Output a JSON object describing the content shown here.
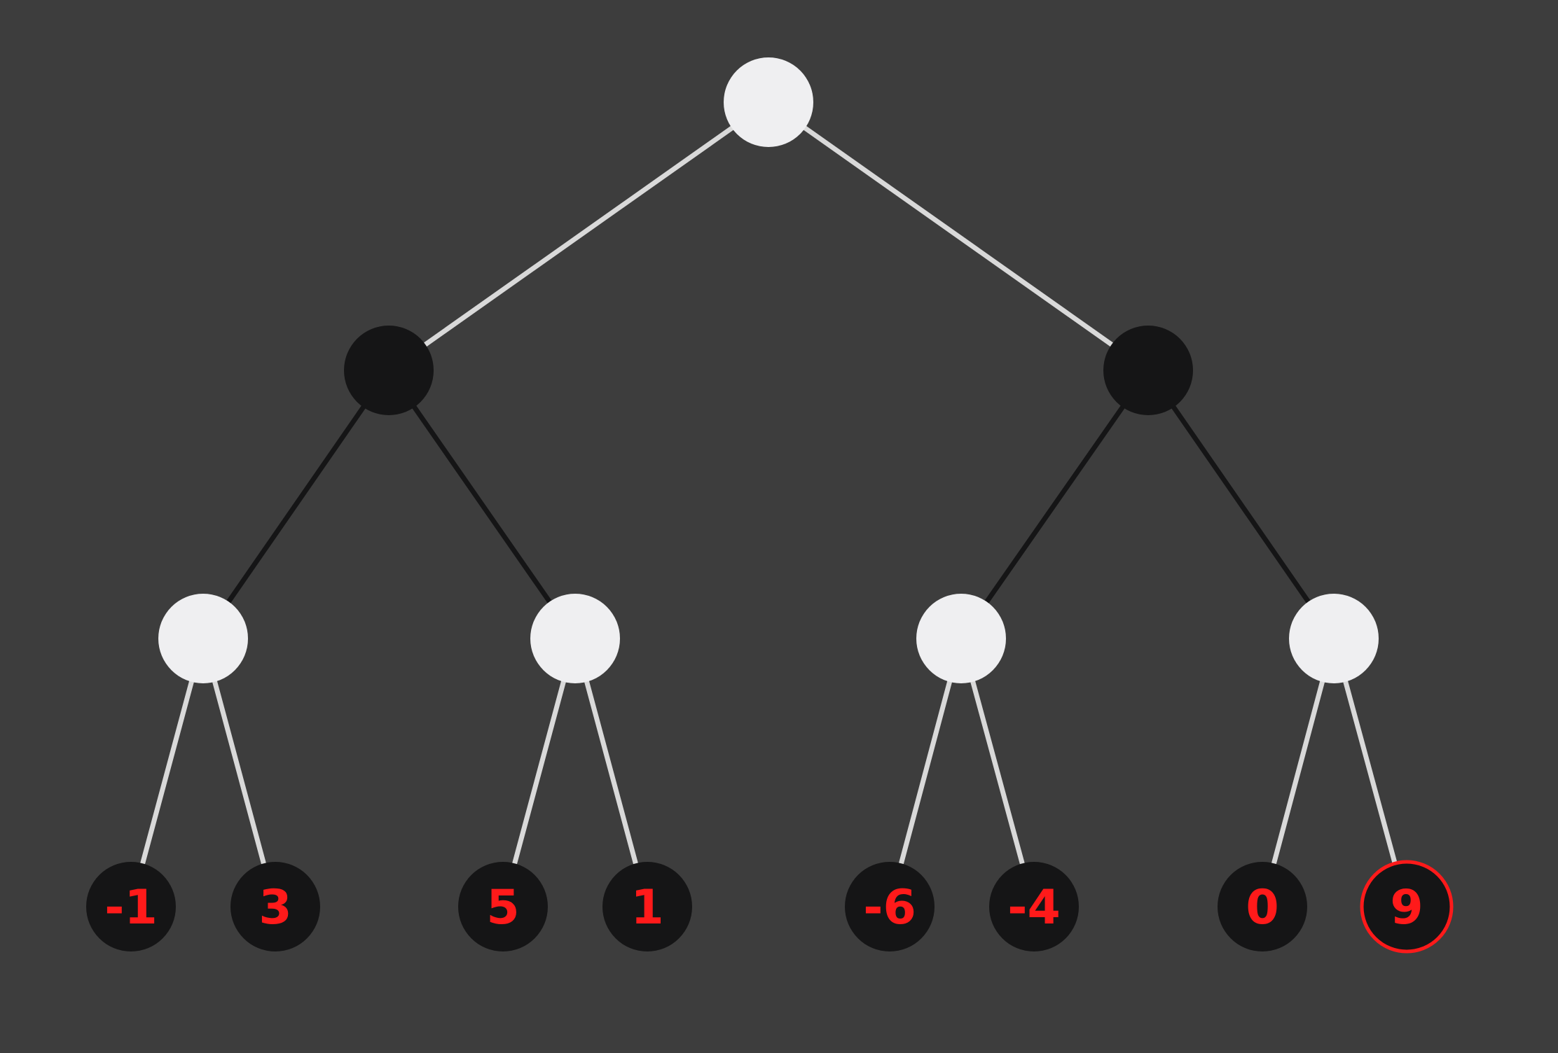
{
  "colors": {
    "background": "#3d3d3d",
    "max_node_fill": "#efeff1",
    "min_node_fill": "#151516",
    "light_edge": "#d9d9d9",
    "dark_edge": "#151516",
    "leaf_text": "#ff1a1a",
    "highlight_ring": "#ff1a1a"
  },
  "tree": {
    "levels": [
      {
        "depth": 0,
        "node_type": "max",
        "count": 1
      },
      {
        "depth": 1,
        "node_type": "min",
        "count": 2
      },
      {
        "depth": 2,
        "node_type": "max",
        "count": 4
      },
      {
        "depth": 3,
        "node_type": "leaf",
        "count": 8
      }
    ],
    "leaves": [
      {
        "value": "-1",
        "highlighted": false
      },
      {
        "value": "3",
        "highlighted": false
      },
      {
        "value": "5",
        "highlighted": false
      },
      {
        "value": "1",
        "highlighted": false
      },
      {
        "value": "-6",
        "highlighted": false
      },
      {
        "value": "-4",
        "highlighted": false
      },
      {
        "value": "0",
        "highlighted": false
      },
      {
        "value": "9",
        "highlighted": true
      }
    ]
  }
}
